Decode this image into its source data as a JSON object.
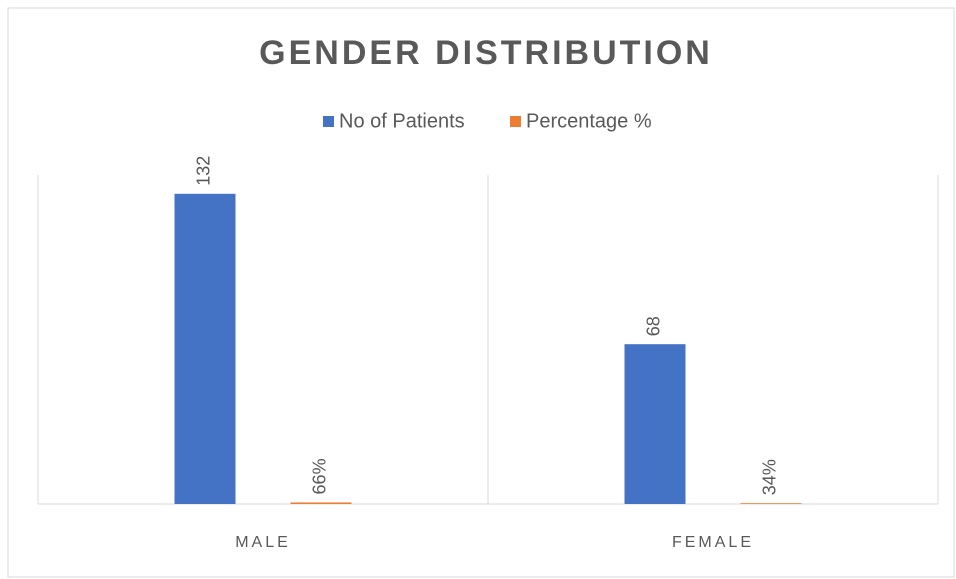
{
  "chart_data": {
    "type": "bar",
    "title": "GENDER DISTRIBUTION",
    "categories": [
      "MALE",
      "FEMALE"
    ],
    "series": [
      {
        "name": "No of Patients",
        "color": "#4472c4",
        "values": [
          132,
          68
        ]
      },
      {
        "name": "Percentage %",
        "color": "#ed7d31",
        "values": [
          0.66,
          0.34
        ],
        "value_labels": [
          "66%",
          "34%"
        ]
      }
    ],
    "ylim": [
      0,
      140
    ],
    "legend": "top"
  }
}
